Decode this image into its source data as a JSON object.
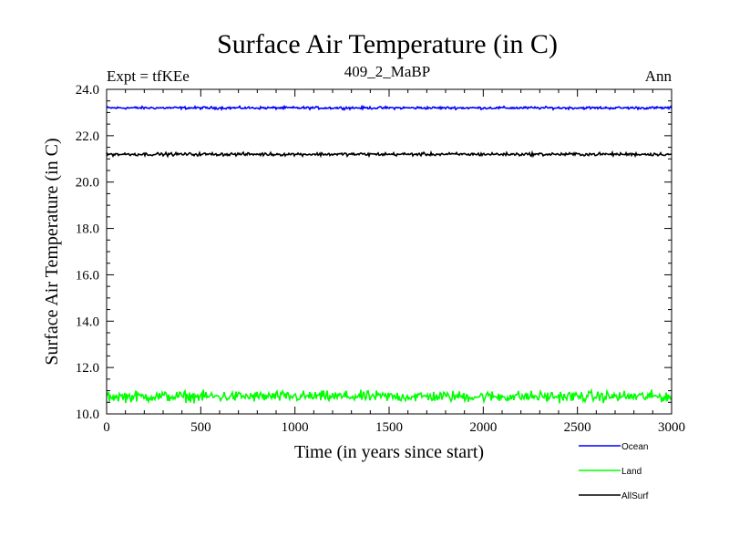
{
  "chart_data": {
    "type": "line",
    "title": "Surface Air Temperature (in C)",
    "subtitle_left": "Expt = tfKEe",
    "subtitle_center": "409_2_MaBP",
    "subtitle_right": "Ann",
    "xlabel": "Time (in years since start)",
    "ylabel": "Surface Air Temperature (in C)",
    "xlim": [
      0,
      3000
    ],
    "ylim": [
      10.0,
      24.0
    ],
    "x_ticks": [
      0,
      500,
      1000,
      1500,
      2000,
      2500,
      3000
    ],
    "y_ticks": [
      "10.0",
      "12.0",
      "14.0",
      "16.0",
      "18.0",
      "20.0",
      "22.0",
      "24.0"
    ],
    "grid": false,
    "legend_position": "bottom-right, below plot",
    "series": [
      {
        "name": "Ocean",
        "color": "#0000ff",
        "mean": 23.2,
        "noise_amplitude": 0.08,
        "x_start": 0,
        "x_end": 3000
      },
      {
        "name": "Land",
        "color": "#00ff00",
        "mean": 10.75,
        "noise_amplitude": 0.35,
        "x_start": 0,
        "x_end": 3000
      },
      {
        "name": "AllSurf",
        "color": "#000000",
        "mean": 21.2,
        "noise_amplitude": 0.1,
        "x_start": 0,
        "x_end": 3000
      }
    ]
  }
}
